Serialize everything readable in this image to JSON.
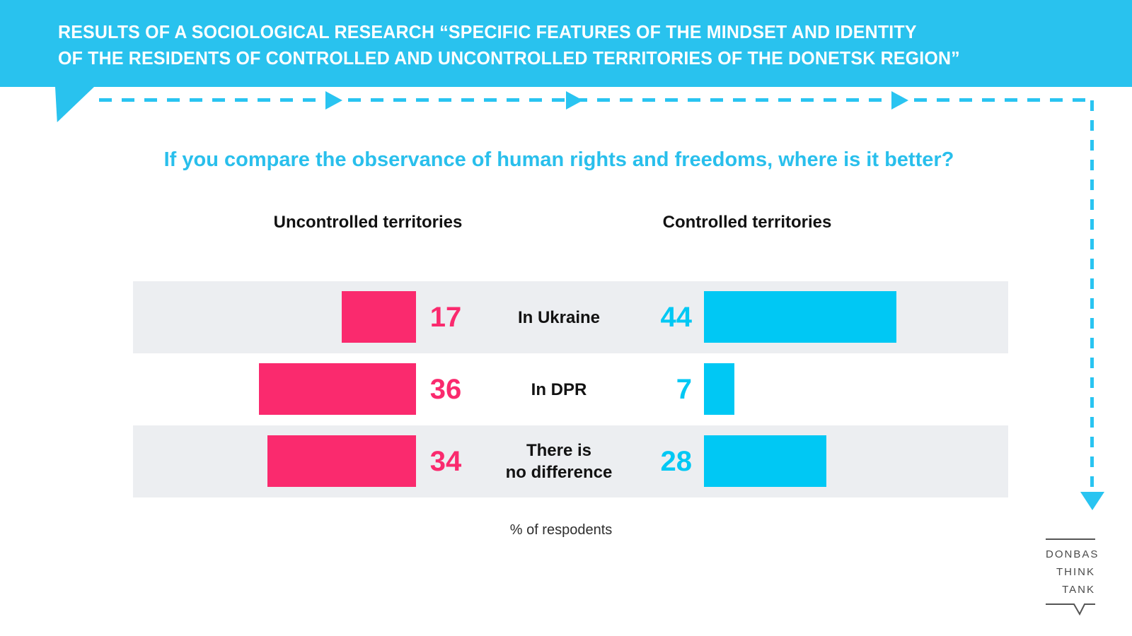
{
  "header": {
    "title_line1": "RESULTS OF A SOCIOLOGICAL RESEARCH “SPECIFIC FEATURES OF THE MINDSET AND IDENTITY",
    "title_line2": "OF THE RESIDENTS OF CONTROLLED AND UNCONTROLLED TERRITORIES OF THE DONETSK REGION”"
  },
  "question": "If you compare the observance of human rights and freedoms, where is it better?",
  "columns": {
    "left": "Uncontrolled territories",
    "right": "Controlled territories"
  },
  "chart_data": {
    "type": "bar",
    "title": "If you compare the observance of human rights and freedoms, where is it better?",
    "categories": [
      "In Ukraine",
      "In DPR",
      "There is no difference"
    ],
    "category_lines": [
      [
        "In Ukraine",
        ""
      ],
      [
        "In DPR",
        ""
      ],
      [
        "There is",
        "no difference"
      ]
    ],
    "series": [
      {
        "name": "Uncontrolled territories",
        "color": "#FA2A6E",
        "values": [
          17,
          36,
          34
        ]
      },
      {
        "name": "Controlled territories",
        "color": "#00C8F4",
        "values": [
          44,
          7,
          28
        ]
      }
    ],
    "xlabel": "% of respodents",
    "xlim": [
      0,
      100
    ],
    "layout": "diverging bars from center labels, values beside bars, no axes or grid"
  },
  "footer": {
    "caption": "% of respodents"
  },
  "logo": {
    "lines": [
      "DONBAS",
      "THINK",
      "TANK"
    ]
  },
  "colors": {
    "header_bg": "#29C2EE",
    "dashed_line": "#29C4F1",
    "pink": "#FA2A6E",
    "cyan": "#00C8F4",
    "row_bg": "#ECEEF1",
    "question_text": "#29BFEC"
  }
}
